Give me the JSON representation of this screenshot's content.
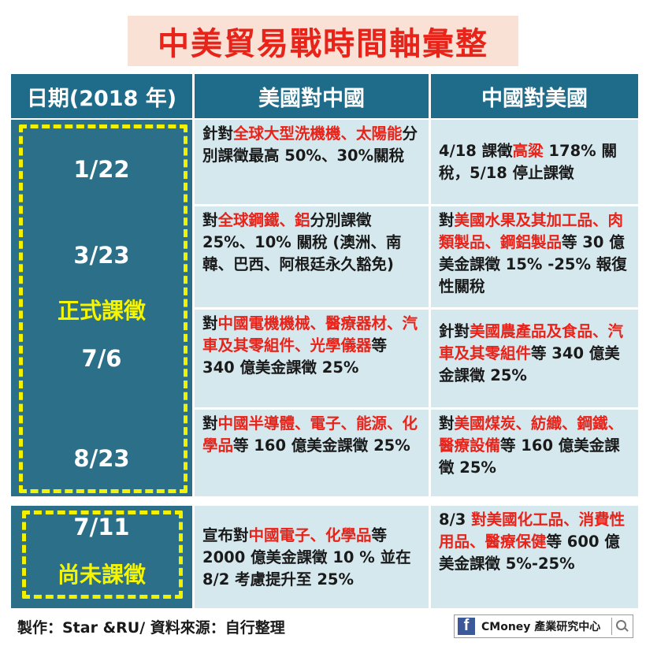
{
  "title": "中美貿易戰時間軸彙整",
  "headers": [
    "日期(2018 年)",
    "美國對中國",
    "中國對美國"
  ],
  "rows": [
    {
      "date": "1/22",
      "us": [
        {
          "t": "針對"
        },
        {
          "t": "全球大型洗機機、太陽能",
          "r": true
        },
        {
          "t": "分別課徵最高 50%、30%關稅"
        }
      ],
      "cn": [
        {
          "t": "4/18 課徵"
        },
        {
          "t": "高粱",
          "r": true
        },
        {
          "t": " 178% 關稅，5/18 停止課徵"
        }
      ]
    },
    {
      "date": "3/23",
      "us": [
        {
          "t": "對"
        },
        {
          "t": "全球鋼鐵、鋁",
          "r": true
        },
        {
          "t": "分別課徵 25%、10% 關稅 (澳洲、南韓、巴西、阿根廷永久豁免)"
        }
      ],
      "cn": [
        {
          "t": "對"
        },
        {
          "t": "美國水果及其加工品、肉類製品、鋼鋁製品",
          "r": true
        },
        {
          "t": "等 30 億美金課徵 15% -25% 報復性關稅"
        }
      ]
    },
    {
      "date": "7/6",
      "us": [
        {
          "t": "對"
        },
        {
          "t": "中國電機機械、醫療器材、汽車及其零組件、光學儀器",
          "r": true
        },
        {
          "t": "等 340 億美金課徵 25%"
        }
      ],
      "cn": [
        {
          "t": "針對"
        },
        {
          "t": "美國農產品及食品、汽車及其零組件",
          "r": true
        },
        {
          "t": "等 340 億美金課徵 25%"
        }
      ]
    },
    {
      "date": "8/23",
      "us": [
        {
          "t": "對"
        },
        {
          "t": "中國半導體、電子、能源、化學品",
          "r": true
        },
        {
          "t": "等 160 億美金課徵 25%"
        }
      ],
      "cn": [
        {
          "t": "對"
        },
        {
          "t": "美國煤炭、紡織、鋼鐵、醫療設備",
          "r": true
        },
        {
          "t": "等 160 億美金課徵 25%"
        }
      ]
    },
    {
      "date": "7/11",
      "us": [
        {
          "t": "宣布對"
        },
        {
          "t": "中國電子、化學品",
          "r": true
        },
        {
          "t": "等 2000 億美金課徵 10 % 並在 8/2 考慮提升至 25%"
        }
      ],
      "cn": [
        {
          "t": "8/3 "
        },
        {
          "t": "對美國化工品、消費性用品、醫療保健",
          "r": true
        },
        {
          "t": "等 600 億美金課徵 5%-25%"
        }
      ]
    }
  ],
  "status_formal": "正式課徵",
  "status_pending": "尚未課徵",
  "footer": "製作：Star &RU/ 資料來源：自行整理",
  "brand_text": "CMoney 產業研究中心",
  "colors": {
    "header": "#1e6b8a",
    "cell": "#d5e8ee",
    "highlight": "#e8231a",
    "dash": "#f2f200",
    "title_bg": "#f9e1d6"
  },
  "icons": [
    "facebook-icon",
    "search-icon"
  ]
}
